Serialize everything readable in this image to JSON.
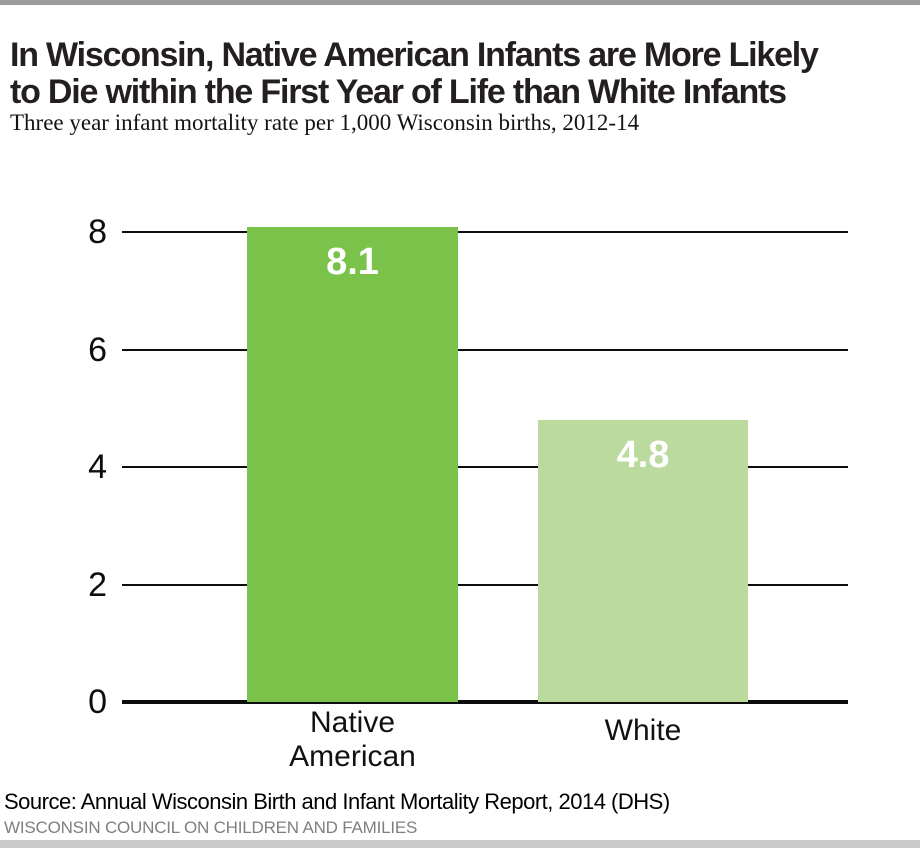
{
  "header": {
    "title_line1": "In Wisconsin, Native American Infants are More Likely",
    "title_line2": "to Die within the First Year of Life than White Infants",
    "subtitle": "Three year infant mortality rate per 1,000 Wisconsin births, 2012-14"
  },
  "chart_data": {
    "type": "bar",
    "title": "In Wisconsin, Native American Infants are More Likely to Die within the First Year of Life than White Infants",
    "subtitle": "Three year infant mortality rate per 1,000 Wisconsin births, 2012-14",
    "categories": [
      "Native American",
      "White"
    ],
    "values": [
      8.1,
      4.8
    ],
    "value_labels": [
      "8.1",
      "4.8"
    ],
    "bar_colors": [
      "#7ac24a",
      "#badb9d"
    ],
    "value_label_color": "#ffffff",
    "xlabel": "",
    "ylabel": "",
    "ylim": [
      0,
      8.5
    ],
    "yticks": [
      0,
      2,
      4,
      6,
      8
    ],
    "grid": true,
    "gridline_color": "#0d0d0d",
    "legend": false
  },
  "footer": {
    "source": "Source: Annual Wisconsin Birth and Infant Mortality Report, 2014 (DHS)",
    "org": "WISCONSIN COUNCIL ON CHILDREN AND FAMILIES"
  },
  "colors": {
    "top_rule": "#9c9c9c",
    "bottom_rule": "#cacaca",
    "title_text": "#231f20",
    "org_text": "#7f7f7f"
  }
}
